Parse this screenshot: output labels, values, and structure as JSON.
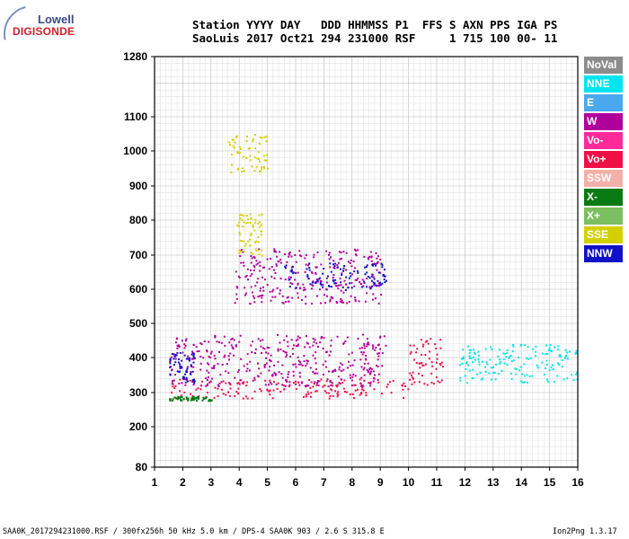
{
  "logo": {
    "line1": "Lowell",
    "line2": "DIGISONDE"
  },
  "header": {
    "row1": "Station YYYY DAY   DDD HHMMSS P1  FFS S AXN PPS IGA PS",
    "row2": "SaoLuis 2017 Oct21 294 231000 RSF     1 715 100 00- 11"
  },
  "legend": [
    {
      "label": "NoVal",
      "color": "#8c8c8c"
    },
    {
      "label": "NNE",
      "color": "#00e5f0"
    },
    {
      "label": "E",
      "color": "#4aa8ee"
    },
    {
      "label": "W",
      "color": "#b0009c"
    },
    {
      "label": "Vo-",
      "color": "#ff2a9a"
    },
    {
      "label": "Vo+",
      "color": "#f01048"
    },
    {
      "label": "SSW",
      "color": "#f2b0a8"
    },
    {
      "label": "X-",
      "color": "#0a7a12"
    },
    {
      "label": "X+",
      "color": "#7cbf60"
    },
    {
      "label": "SSE",
      "color": "#d4d000"
    },
    {
      "label": "NNW",
      "color": "#1010c8"
    }
  ],
  "footer": {
    "left": "SAA0K_2017294231000.RSF / 300fx256h 50 kHz 5.0 km / DPS-4 SAA0K 903 / 2.6 S 315.8 E",
    "right": "Ion2Png 1.3.17"
  },
  "chart_data": {
    "type": "scatter",
    "title": "",
    "xlabel": "",
    "ylabel": "",
    "xlim": [
      1,
      16
    ],
    "ylim": [
      80,
      1280
    ],
    "x_ticks": [
      1,
      2,
      3,
      4,
      5,
      6,
      7,
      8,
      9,
      10,
      11,
      12,
      13,
      14,
      15,
      16
    ],
    "y_ticks": [
      80,
      200,
      300,
      400,
      500,
      600,
      700,
      800,
      900,
      1000,
      1100,
      1280
    ],
    "grid": true,
    "scale": "ionogram (frequency MHz vs virtual height km, nonlinear height axis)",
    "series": [
      {
        "name": "Vo+",
        "color": "#f01048",
        "clusters": [
          {
            "fmin": 1.5,
            "fmax": 10,
            "hmin": 285,
            "hmax": 340
          },
          {
            "fmin": 10,
            "fmax": 11.2,
            "hmin": 320,
            "hmax": 460
          }
        ]
      },
      {
        "name": "W",
        "color": "#b0009c",
        "clusters": [
          {
            "fmin": 1.5,
            "fmax": 9.2,
            "hmin": 320,
            "hmax": 470
          },
          {
            "fmin": 3.8,
            "fmax": 9,
            "hmin": 560,
            "hmax": 720
          }
        ]
      },
      {
        "name": "NNE",
        "color": "#00e5f0",
        "clusters": [
          {
            "fmin": 11.8,
            "fmax": 16,
            "hmin": 330,
            "hmax": 440
          }
        ]
      },
      {
        "name": "SSE",
        "color": "#d4d000",
        "clusters": [
          {
            "fmin": 3.6,
            "fmax": 5,
            "hmin": 940,
            "hmax": 1050
          },
          {
            "fmin": 3.9,
            "fmax": 4.8,
            "hmin": 700,
            "hmax": 820
          }
        ]
      },
      {
        "name": "NNW",
        "color": "#1010c8",
        "clusters": [
          {
            "fmin": 5.5,
            "fmax": 9.2,
            "hmin": 600,
            "hmax": 680
          },
          {
            "fmin": 1.5,
            "fmax": 2.4,
            "hmin": 330,
            "hmax": 420
          }
        ]
      },
      {
        "name": "X-",
        "color": "#0a7a12",
        "clusters": [
          {
            "fmin": 1.5,
            "fmax": 3,
            "hmin": 278,
            "hmax": 290
          }
        ]
      }
    ]
  }
}
